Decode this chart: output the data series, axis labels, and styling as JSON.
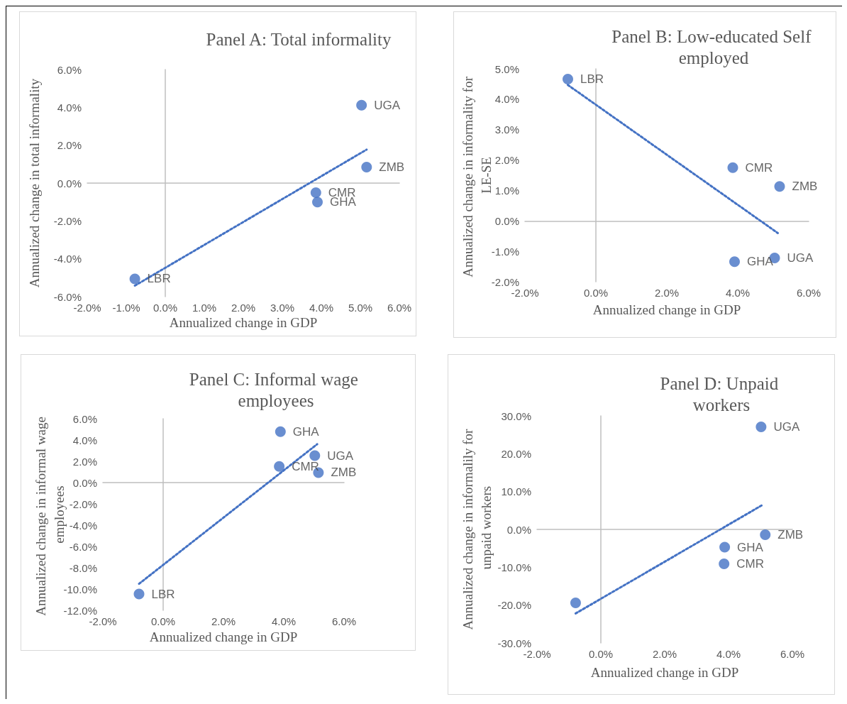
{
  "chart_data": [
    {
      "type": "scatter",
      "title": "Panel A: Total informality",
      "xlabel": "Annualized change in GDP",
      "ylabel": "Annualized change in total informality",
      "xlim": [
        -2,
        6
      ],
      "xticks": [
        {
          "value": -2,
          "label": "-2.0%"
        },
        {
          "value": -1,
          "label": "-1.0%"
        },
        {
          "value": 0,
          "label": "0.0%"
        },
        {
          "value": 1,
          "label": "1.0%"
        },
        {
          "value": 2,
          "label": "2.0%"
        },
        {
          "value": 3,
          "label": "3.0%"
        },
        {
          "value": 4,
          "label": "4.0%"
        },
        {
          "value": 5,
          "label": "5.0%"
        },
        {
          "value": 6,
          "label": "6.0%"
        }
      ],
      "ylim": [
        -6,
        6
      ],
      "yticks": [
        {
          "value": -6,
          "label": "-6.0%"
        },
        {
          "value": -4,
          "label": "-4.0%"
        },
        {
          "value": -2,
          "label": "-2.0%"
        },
        {
          "value": 0,
          "label": "0.0%"
        },
        {
          "value": 2,
          "label": "2.0%"
        },
        {
          "value": 4,
          "label": "4.0%"
        },
        {
          "value": 6,
          "label": "6.0%"
        }
      ],
      "series": [
        {
          "type": "scatter",
          "marker": "circle",
          "color": "#4472c4",
          "x": [
            5.03,
            5.16,
            3.86,
            3.9,
            -0.78
          ],
          "values": [
            4.12,
            0.84,
            -0.51,
            -1.0,
            -5.06
          ],
          "value_labels": [
            "UGA",
            "ZMB",
            "CMR",
            "GHA",
            "LBR"
          ]
        },
        {
          "type": "line",
          "marker": "none",
          "line_style": "dotted",
          "color": "#4472c4",
          "x": [
            -0.78,
            5.16
          ],
          "values": [
            -5.42,
            1.77
          ]
        }
      ]
    },
    {
      "type": "scatter",
      "title": "Panel B: Low-educated Self employed",
      "xlabel": "Annualized change in GDP",
      "ylabel": "Annualized change in informality for LE-SE",
      "xlim": [
        -2,
        6
      ],
      "xticks": [
        {
          "value": -2,
          "label": "-2.0%"
        },
        {
          "value": 0,
          "label": "0.0%"
        },
        {
          "value": 2,
          "label": "2.0%"
        },
        {
          "value": 4,
          "label": "4.0%"
        },
        {
          "value": 6,
          "label": "6.0%"
        }
      ],
      "ylim": [
        -2,
        5
      ],
      "yticks": [
        {
          "value": -2,
          "label": "-2.0%"
        },
        {
          "value": -1,
          "label": "-1.0%"
        },
        {
          "value": 0,
          "label": "0.0%"
        },
        {
          "value": 1,
          "label": "1.0%"
        },
        {
          "value": 2,
          "label": "2.0%"
        },
        {
          "value": 3,
          "label": "3.0%"
        },
        {
          "value": 4,
          "label": "4.0%"
        },
        {
          "value": 5,
          "label": "5.0%"
        }
      ],
      "series": [
        {
          "type": "scatter",
          "marker": "circle",
          "color": "#4472c4",
          "x": [
            -0.79,
            3.86,
            5.18,
            3.91,
            5.04
          ],
          "values": [
            4.66,
            1.75,
            1.13,
            -1.34,
            -1.22
          ],
          "value_labels": [
            "LBR",
            "CMR",
            "ZMB",
            "GHA",
            "UGA"
          ]
        },
        {
          "type": "line",
          "marker": "none",
          "line_style": "dotted",
          "color": "#4472c4",
          "x": [
            -0.79,
            5.13
          ],
          "values": [
            4.47,
            -0.4
          ]
        }
      ]
    },
    {
      "type": "scatter",
      "title": "Panel C: Informal wage employees",
      "xlabel": "Annualized change in GDP",
      "ylabel": "Annualized change in informal wage employees",
      "xlim": [
        -2,
        6
      ],
      "xticks": [
        {
          "value": -2,
          "label": "-2.0%"
        },
        {
          "value": 0,
          "label": "0.0%"
        },
        {
          "value": 2,
          "label": "2.0%"
        },
        {
          "value": 4,
          "label": "4.0%"
        },
        {
          "value": 6,
          "label": "6.0%"
        }
      ],
      "ylim": [
        -12,
        6
      ],
      "yticks": [
        {
          "value": -12,
          "label": "-12.0%"
        },
        {
          "value": -10,
          "label": "-10.0%"
        },
        {
          "value": -8,
          "label": "-8.0%"
        },
        {
          "value": -6,
          "label": "-6.0%"
        },
        {
          "value": -4,
          "label": "-4.0%"
        },
        {
          "value": -2,
          "label": "-2.0%"
        },
        {
          "value": 0,
          "label": "0.0%"
        },
        {
          "value": 2,
          "label": "2.0%"
        },
        {
          "value": 4,
          "label": "4.0%"
        },
        {
          "value": 6,
          "label": "6.0%"
        }
      ],
      "series": [
        {
          "type": "scatter",
          "marker": "circle",
          "color": "#4472c4",
          "x": [
            3.89,
            5.03,
            3.85,
            5.15,
            -0.8
          ],
          "values": [
            4.78,
            2.53,
            1.51,
            0.94,
            -10.47
          ],
          "value_labels": [
            "GHA",
            "UGA",
            "CMR",
            "ZMB",
            "LBR"
          ]
        },
        {
          "type": "line",
          "marker": "none",
          "line_style": "dotted",
          "color": "#4472c4",
          "x": [
            -0.8,
            5.11
          ],
          "values": [
            -9.51,
            3.61
          ]
        }
      ]
    },
    {
      "type": "scatter",
      "title": "Panel D: Unpaid workers",
      "xlabel": "Annualized change in GDP",
      "ylabel": "Annualized change in informalily for unpaid workers",
      "xlim": [
        -2,
        6
      ],
      "xticks": [
        {
          "value": -2,
          "label": "-2.0%"
        },
        {
          "value": 0,
          "label": "0.0%"
        },
        {
          "value": 2,
          "label": "2.0%"
        },
        {
          "value": 4,
          "label": "4.0%"
        },
        {
          "value": 6,
          "label": "6.0%"
        }
      ],
      "ylim": [
        -30,
        30
      ],
      "yticks": [
        {
          "value": -30,
          "label": "-30.0%"
        },
        {
          "value": -20,
          "label": "-20.0%"
        },
        {
          "value": -10,
          "label": "-10.0%"
        },
        {
          "value": 0,
          "label": "0.0%"
        },
        {
          "value": 10,
          "label": "10.0%"
        },
        {
          "value": 20,
          "label": "20.0%"
        },
        {
          "value": 30,
          "label": "30.0%"
        }
      ],
      "series": [
        {
          "type": "scatter",
          "marker": "circle",
          "color": "#4472c4",
          "x": [
            5.02,
            5.15,
            3.88,
            3.86,
            -0.79
          ],
          "values": [
            27.1,
            -1.4,
            -4.7,
            -9.1,
            -19.4
          ],
          "value_labels": [
            "UGA",
            "ZMB",
            "GHA",
            "CMR",
            null
          ]
        },
        {
          "type": "line",
          "marker": "none",
          "line_style": "dotted",
          "color": "#4472c4",
          "x": [
            -0.79,
            5.05
          ],
          "values": [
            -22.2,
            6.4
          ]
        }
      ]
    }
  ]
}
